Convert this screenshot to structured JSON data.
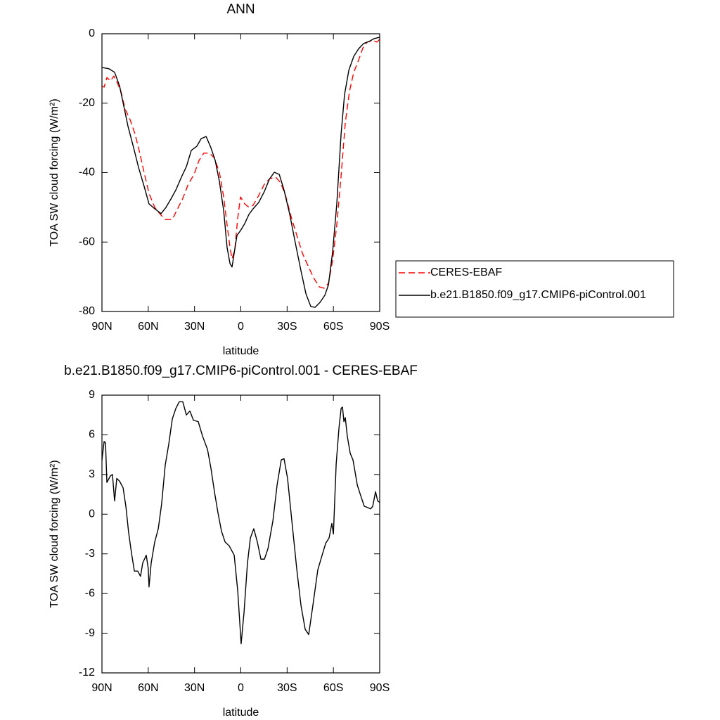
{
  "chart_data": [
    {
      "type": "line",
      "title": "ANN",
      "x_label": "latitude",
      "y_label": "TOA SW cloud forcing (W/m²)",
      "xlim": [
        90,
        -90
      ],
      "xticks": [
        {
          "value": 90,
          "label": "90N"
        },
        {
          "value": 60,
          "label": "60N"
        },
        {
          "value": 30,
          "label": "30N"
        },
        0,
        {
          "value": -30,
          "label": "30S"
        },
        {
          "value": -60,
          "label": "60S"
        },
        {
          "value": -90,
          "label": "90S"
        }
      ],
      "ylim": [
        -80,
        0
      ],
      "yticks": [
        -80,
        -60,
        -40,
        -20,
        0
      ],
      "legend": "outside-right",
      "series": [
        {
          "name": "CERES-EBAF",
          "color": "#ff0000",
          "dashed": true,
          "x": [
            90,
            88.6,
            86.8,
            84.5,
            82.3,
            80,
            77.7,
            75,
            71.8,
            68.6,
            65.8,
            62.7,
            59.5,
            55.8,
            52.2,
            49,
            44.4,
            41.2,
            37.6,
            34,
            30.3,
            27.1,
            24,
            20.3,
            17.1,
            13.9,
            11.1,
            8.9,
            7,
            5.7,
            3.9,
            2,
            0.2,
            -2.5,
            -5.3,
            -8,
            -11.6,
            -15.3,
            -18.9,
            -22.6,
            -25.8,
            -29,
            -32.6,
            -36.3,
            -39.9,
            -43.5,
            -47.2,
            -50.8,
            -54,
            -56.8,
            -59.5,
            -62.2,
            -65,
            -67.7,
            -70.4,
            -73.2,
            -76.4,
            -79.1,
            -81.8,
            -85.5,
            -88.2,
            -90
          ],
          "values": [
            -15,
            -15.4,
            -12.6,
            -13.6,
            -12.2,
            -14.2,
            -16.6,
            -21.7,
            -24.7,
            -28.8,
            -33.8,
            -39.9,
            -46,
            -50,
            -52,
            -53.5,
            -53.5,
            -50.6,
            -47.4,
            -43.3,
            -40.5,
            -36.5,
            -34.4,
            -34.4,
            -35.8,
            -39.9,
            -47,
            -55.1,
            -61.6,
            -64.8,
            -62.2,
            -53.1,
            -47,
            -49,
            -50,
            -49.4,
            -46.6,
            -43.3,
            -41.7,
            -41.3,
            -42.9,
            -46.6,
            -52.7,
            -58.1,
            -63.2,
            -66.8,
            -70.3,
            -72.9,
            -73.3,
            -71.9,
            -65.2,
            -55.1,
            -40.9,
            -25.7,
            -16.6,
            -11.1,
            -7.5,
            -4.1,
            -2.4,
            -2,
            -2.4,
            -1.6
          ]
        },
        {
          "name": "b.e21.B1850.f09_g17.CMIP6-piControl.001",
          "color": "#000000",
          "dashed": false,
          "x": [
            90,
            85.4,
            81.8,
            78.6,
            75.9,
            73.1,
            69.5,
            66.3,
            62.7,
            59.5,
            55.8,
            51.7,
            48.5,
            45.3,
            42.1,
            38.5,
            35.3,
            32.1,
            28.5,
            25.7,
            22.5,
            19.4,
            16.6,
            13.9,
            11.1,
            8.9,
            7,
            5.7,
            4.3,
            2.5,
            0.2,
            -2.5,
            -5.3,
            -8,
            -11.6,
            -15.3,
            -18.5,
            -21.7,
            -24.9,
            -28,
            -31.7,
            -35.3,
            -39,
            -42.2,
            -45.4,
            -48.1,
            -51.3,
            -54.5,
            -56.8,
            -59.5,
            -62.2,
            -65,
            -67.2,
            -70,
            -73.2,
            -76.4,
            -79.6,
            -83.2,
            -86.4,
            -90
          ],
          "values": [
            -9.7,
            -10.1,
            -11.1,
            -15,
            -20.7,
            -26.7,
            -32.8,
            -38.5,
            -43.9,
            -49,
            -50.4,
            -51.8,
            -50,
            -47.6,
            -45,
            -41.3,
            -38.3,
            -33.6,
            -32.4,
            -30.2,
            -29.6,
            -32.8,
            -36.5,
            -42.5,
            -51,
            -61.6,
            -66.2,
            -67.2,
            -63.2,
            -58.1,
            -56.7,
            -54.7,
            -52,
            -50.4,
            -48.6,
            -45.4,
            -41.9,
            -39.9,
            -40.5,
            -45,
            -52,
            -60.2,
            -68.3,
            -74.9,
            -78.6,
            -78.8,
            -77.4,
            -75.3,
            -72.3,
            -62.8,
            -49,
            -28.8,
            -17.6,
            -10.5,
            -6.5,
            -4.3,
            -2.8,
            -2.2,
            -1.4,
            -1
          ]
        }
      ]
    },
    {
      "type": "line",
      "title": "b.e21.B1850.f09_g17.CMIP6-piControl.001 - CERES-EBAF",
      "x_label": "latitude",
      "y_label": "TOA SW cloud forcing (W/m²)",
      "xlim": [
        90,
        -90
      ],
      "xticks": [
        {
          "value": 90,
          "label": "90N"
        },
        {
          "value": 60,
          "label": "60N"
        },
        {
          "value": 30,
          "label": "30N"
        },
        0,
        {
          "value": -30,
          "label": "30S"
        },
        {
          "value": -60,
          "label": "60S"
        },
        {
          "value": -90,
          "label": "90S"
        }
      ],
      "ylim": [
        -12,
        9
      ],
      "yticks": [
        -12,
        -9,
        -6,
        -3,
        0,
        3,
        6,
        9
      ],
      "color": "#000000",
      "x": [
        90,
        88.6,
        87.7,
        86.8,
        84.5,
        83.2,
        81.8,
        80.4,
        78.6,
        76.3,
        74.5,
        72.7,
        70.9,
        69,
        66.8,
        65,
        63.6,
        61.3,
        60,
        59.5,
        58.1,
        55.8,
        53.5,
        51.3,
        49,
        46.7,
        44.4,
        42.1,
        39.9,
        37.6,
        35.3,
        33,
        30.7,
        27.6,
        24.8,
        21.6,
        19.4,
        17.1,
        14.8,
        12.5,
        10.2,
        7.5,
        4.3,
        2,
        -0.2,
        -2.1,
        -4.3,
        -6.2,
        -8.4,
        -10.7,
        -13,
        -15.3,
        -17.6,
        -20.8,
        -23.5,
        -26.2,
        -28,
        -30.3,
        -33.5,
        -36.3,
        -39,
        -41.7,
        -44,
        -46.7,
        -49.9,
        -52.7,
        -55,
        -57.2,
        -59,
        -60,
        -61.8,
        -63.6,
        -65,
        -65.9,
        -66.8,
        -67.7,
        -69,
        -70.9,
        -72.7,
        -75.5,
        -77.7,
        -80,
        -82.3,
        -84.1,
        -85.5,
        -87.3,
        -88.7,
        -90
      ],
      "values": [
        4.1,
        5.5,
        5.4,
        2.4,
        2.9,
        3,
        1,
        2.7,
        2.5,
        2,
        0.6,
        -1.4,
        -2.9,
        -4.3,
        -4.3,
        -4.7,
        -3.7,
        -3.1,
        -4.1,
        -5.5,
        -3.7,
        -2.1,
        -1.1,
        0.8,
        3.7,
        5.3,
        7.2,
        8,
        8.5,
        8.5,
        7.5,
        7.8,
        7.1,
        7,
        5.9,
        4.9,
        3.5,
        1.7,
        0.1,
        -1.3,
        -2.1,
        -2.4,
        -3.1,
        -5.8,
        -9.8,
        -7.4,
        -3.7,
        -1.8,
        -1.1,
        -2.1,
        -3.4,
        -3.4,
        -2.6,
        -0.5,
        2.2,
        4.1,
        4.2,
        2.7,
        -1,
        -4.2,
        -6.9,
        -8.7,
        -9.1,
        -6.9,
        -4.2,
        -3.1,
        -2.2,
        -1.8,
        -0.7,
        -1.5,
        3.8,
        6.5,
        8,
        8.1,
        7,
        7.3,
        5.9,
        4.6,
        4.1,
        2.2,
        1.4,
        0.6,
        0.5,
        0.4,
        0.6,
        1.7,
        1,
        0.9
      ]
    }
  ]
}
